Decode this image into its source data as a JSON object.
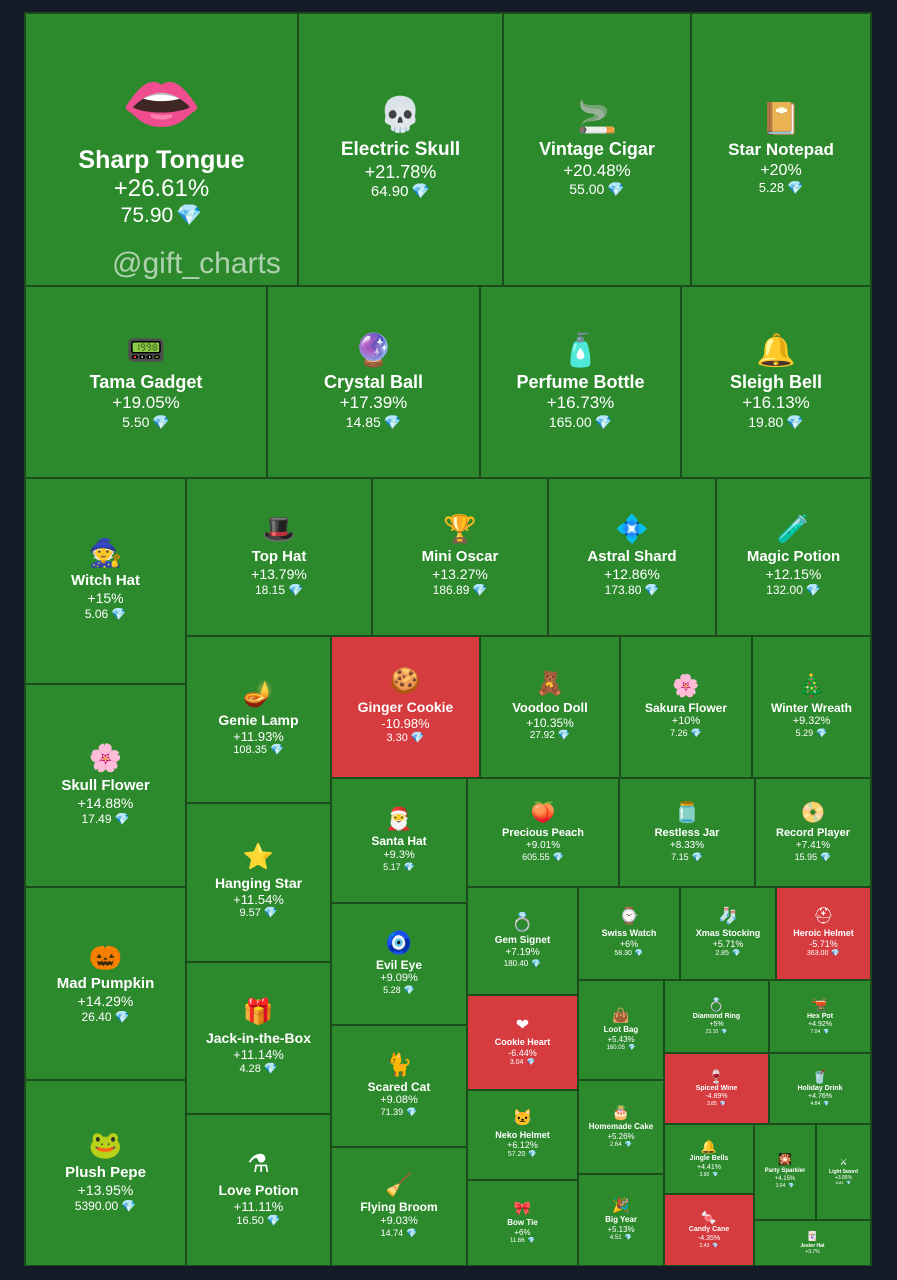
{
  "watermark": "@gift_charts",
  "colors": {
    "up": "#2c8a2c",
    "down": "#d53b3f",
    "gem": "#6ad6ff",
    "background": "#141a26"
  },
  "chart_data": {
    "type": "treemap",
    "currency_icon": "diamond-icon",
    "items": [
      {
        "name": "Sharp Tongue",
        "change": "+26.61%",
        "price": "75.90",
        "icon": "mouth-icon",
        "glyph": "👄",
        "trend": "up"
      },
      {
        "name": "Electric Skull",
        "change": "+21.78%",
        "price": "64.90",
        "icon": "skull-icon",
        "glyph": "💀",
        "trend": "up"
      },
      {
        "name": "Vintage Cigar",
        "change": "+20.48%",
        "price": "55.00",
        "icon": "cigar-icon",
        "glyph": "🚬",
        "trend": "up"
      },
      {
        "name": "Star Notepad",
        "change": "+20%",
        "price": "5.28",
        "icon": "notepad-icon",
        "glyph": "📔",
        "trend": "up"
      },
      {
        "name": "Tama Gadget",
        "change": "+19.05%",
        "price": "5.50",
        "icon": "tamagotchi-icon",
        "glyph": "📟",
        "trend": "up"
      },
      {
        "name": "Crystal Ball",
        "change": "+17.39%",
        "price": "14.85",
        "icon": "crystal-ball-icon",
        "glyph": "🔮",
        "trend": "up"
      },
      {
        "name": "Perfume Bottle",
        "change": "+16.73%",
        "price": "165.00",
        "icon": "perfume-icon",
        "glyph": "🧴",
        "trend": "up"
      },
      {
        "name": "Sleigh Bell",
        "change": "+16.13%",
        "price": "19.80",
        "icon": "bell-icon",
        "glyph": "🔔",
        "trend": "up"
      },
      {
        "name": "Witch Hat",
        "change": "+15%",
        "price": "5.06",
        "icon": "witch-hat-icon",
        "glyph": "🧙",
        "trend": "up"
      },
      {
        "name": "Top Hat",
        "change": "+13.79%",
        "price": "18.15",
        "icon": "top-hat-icon",
        "glyph": "🎩",
        "trend": "up"
      },
      {
        "name": "Mini Oscar",
        "change": "+13.27%",
        "price": "186.89",
        "icon": "trophy-icon",
        "glyph": "🏆",
        "trend": "up"
      },
      {
        "name": "Astral Shard",
        "change": "+12.86%",
        "price": "173.80",
        "icon": "shard-icon",
        "glyph": "💠",
        "trend": "up"
      },
      {
        "name": "Magic Potion",
        "change": "+12.15%",
        "price": "132.00",
        "icon": "potion-icon",
        "glyph": "🧪",
        "trend": "up"
      },
      {
        "name": "Skull Flower",
        "change": "+14.88%",
        "price": "17.49",
        "icon": "skull-flower-icon",
        "glyph": "🌸",
        "trend": "up"
      },
      {
        "name": "Genie Lamp",
        "change": "+11.93%",
        "price": "108.35",
        "icon": "lamp-icon",
        "glyph": "🪔",
        "trend": "up"
      },
      {
        "name": "Ginger Cookie",
        "change": "-10.98%",
        "price": "3.30",
        "icon": "gingerbread-icon",
        "glyph": "🍪",
        "trend": "down"
      },
      {
        "name": "Voodoo Doll",
        "change": "+10.35%",
        "price": "27.92",
        "icon": "doll-icon",
        "glyph": "🧸",
        "trend": "up"
      },
      {
        "name": "Sakura Flower",
        "change": "+10%",
        "price": "7.26",
        "icon": "blossom-icon",
        "glyph": "🌸",
        "trend": "up"
      },
      {
        "name": "Winter Wreath",
        "change": "+9.32%",
        "price": "5.29",
        "icon": "wreath-icon",
        "glyph": "🎄",
        "trend": "up"
      },
      {
        "name": "Mad Pumpkin",
        "change": "+14.29%",
        "price": "26.40",
        "icon": "pumpkin-icon",
        "glyph": "🎃",
        "trend": "up"
      },
      {
        "name": "Hanging Star",
        "change": "+11.54%",
        "price": "9.57",
        "icon": "star-icon",
        "glyph": "⭐",
        "trend": "up"
      },
      {
        "name": "Santa Hat",
        "change": "+9.3%",
        "price": "5.17",
        "icon": "santa-hat-icon",
        "glyph": "🎅",
        "trend": "up"
      },
      {
        "name": "Precious Peach",
        "change": "+9.01%",
        "price": "605.55",
        "icon": "peach-icon",
        "glyph": "🍑",
        "trend": "up"
      },
      {
        "name": "Restless Jar",
        "change": "+8.33%",
        "price": "7.15",
        "icon": "jar-icon",
        "glyph": "🫙",
        "trend": "up"
      },
      {
        "name": "Record Player",
        "change": "+7.41%",
        "price": "15.95",
        "icon": "record-player-icon",
        "glyph": "📀",
        "trend": "up"
      },
      {
        "name": "Evil Eye",
        "change": "+9.09%",
        "price": "5.28",
        "icon": "eye-icon",
        "glyph": "🧿",
        "trend": "up"
      },
      {
        "name": "Gem Signet",
        "change": "+7.19%",
        "price": "180.40",
        "icon": "ring-icon",
        "glyph": "💍",
        "trend": "up"
      },
      {
        "name": "Swiss Watch",
        "change": "+6%",
        "price": "58.30",
        "icon": "watch-icon",
        "glyph": "⌚",
        "trend": "up"
      },
      {
        "name": "Xmas Stocking",
        "change": "+5.71%",
        "price": "2.85",
        "icon": "stocking-icon",
        "glyph": "🧦",
        "trend": "up"
      },
      {
        "name": "Heroic Helmet",
        "change": "-5.71%",
        "price": "363.00",
        "icon": "helmet-icon",
        "glyph": "⛑",
        "trend": "down"
      },
      {
        "name": "Jack-in-the-Box",
        "change": "+11.14%",
        "price": "4.28",
        "icon": "gift-box-icon",
        "glyph": "🎁",
        "trend": "up"
      },
      {
        "name": "Scared Cat",
        "change": "+9.08%",
        "price": "71.39",
        "icon": "cat-icon",
        "glyph": "🐈",
        "trend": "up"
      },
      {
        "name": "Cookie Heart",
        "change": "-6.44%",
        "price": "3.04",
        "icon": "heart-icon",
        "glyph": "❤",
        "trend": "down"
      },
      {
        "name": "Loot Bag",
        "change": "+5.43%",
        "price": "160.05",
        "icon": "bag-icon",
        "glyph": "👜",
        "trend": "up"
      },
      {
        "name": "Diamond Ring",
        "change": "+5%",
        "price": "23.10",
        "icon": "diamond-ring-icon",
        "glyph": "💍",
        "trend": "up"
      },
      {
        "name": "Hex Pot",
        "change": "+4.92%",
        "price": "7.04",
        "icon": "cauldron-icon",
        "glyph": "🫕",
        "trend": "up"
      },
      {
        "name": "Spiced Wine",
        "change": "-4.89%",
        "price": "3.85",
        "icon": "wine-icon",
        "glyph": "🍷",
        "trend": "down"
      },
      {
        "name": "Holiday Drink",
        "change": "+4.76%",
        "price": "4.84",
        "icon": "drink-icon",
        "glyph": "🥤",
        "trend": "up"
      },
      {
        "name": "Plush Pepe",
        "change": "+13.95%",
        "price": "5390.00",
        "icon": "frog-icon",
        "glyph": "🐸",
        "trend": "up"
      },
      {
        "name": "Love Potion",
        "change": "+11.11%",
        "price": "16.50",
        "icon": "love-potion-icon",
        "glyph": "⚗",
        "trend": "up"
      },
      {
        "name": "Flying Broom",
        "change": "+9.03%",
        "price": "14.74",
        "icon": "broom-icon",
        "glyph": "🧹",
        "trend": "up"
      },
      {
        "name": "Neko Helmet",
        "change": "+6.12%",
        "price": "57.20",
        "icon": "neko-helmet-icon",
        "glyph": "🐱",
        "trend": "up"
      },
      {
        "name": "Homemade Cake",
        "change": "+5.26%",
        "price": "2.64",
        "icon": "cake-icon",
        "glyph": "🎂",
        "trend": "up"
      },
      {
        "name": "Jingle Bells",
        "change": "+4.41%",
        "price": "3.90",
        "icon": "jingle-bells-icon",
        "glyph": "🔔",
        "trend": "up"
      },
      {
        "name": "Party Sparkler",
        "change": "+4.15%",
        "price": "3.04",
        "icon": "sparkler-icon",
        "glyph": "🎇",
        "trend": "up"
      },
      {
        "name": "Light Sword",
        "change": "+3.85%",
        "price": "5.84",
        "icon": "sword-icon",
        "glyph": "⚔",
        "trend": "up"
      },
      {
        "name": "Bow Tie",
        "change": "+6%",
        "price": "11.66",
        "icon": "bow-tie-icon",
        "glyph": "🎀",
        "trend": "up"
      },
      {
        "name": "Big Year",
        "change": "+5.13%",
        "price": "4.51",
        "icon": "big-year-icon",
        "glyph": "🎉",
        "trend": "up"
      },
      {
        "name": "Candy Cane",
        "change": "-4.35%",
        "price": "2.43",
        "icon": "candy-cane-icon",
        "glyph": "🍬",
        "trend": "down"
      },
      {
        "name": "Jester Hat",
        "change": "+3.7%",
        "price": "",
        "icon": "jester-hat-icon",
        "glyph": "🃏",
        "trend": "up"
      }
    ]
  }
}
